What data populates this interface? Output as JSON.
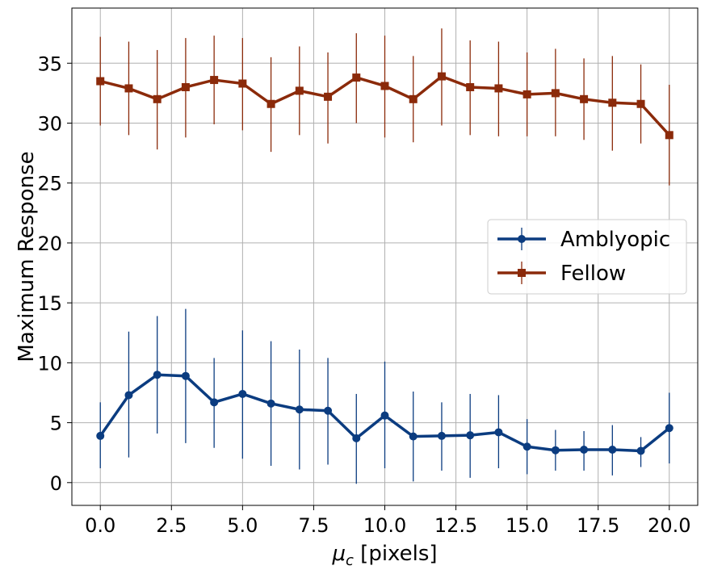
{
  "chart_data": {
    "type": "line",
    "xlabel_symbol": "μ",
    "xlabel_subscript": "c",
    "xlabel_unit": " [pixels]",
    "ylabel": "Maximum Response",
    "xlim": [
      -1.0,
      21.0
    ],
    "ylim": [
      -1.9,
      39.6
    ],
    "xticks": [
      0.0,
      2.5,
      5.0,
      7.5,
      10.0,
      12.5,
      15.0,
      17.5,
      20.0
    ],
    "xtick_labels": [
      "0.0",
      "2.5",
      "5.0",
      "7.5",
      "10.0",
      "12.5",
      "15.0",
      "17.5",
      "20.0"
    ],
    "yticks": [
      0,
      5,
      10,
      15,
      20,
      25,
      30,
      35
    ],
    "ytick_labels": [
      "0",
      "5",
      "10",
      "15",
      "20",
      "25",
      "30",
      "35"
    ],
    "grid": true,
    "legend_position": "center-right",
    "x": [
      0,
      1,
      2,
      3,
      4,
      5,
      6,
      7,
      8,
      9,
      10,
      11,
      12,
      13,
      14,
      15,
      16,
      17,
      18,
      19,
      20
    ],
    "series": [
      {
        "name": "Amblyopic",
        "color": "#0b3c80",
        "marker": "circle",
        "values": [
          3.9,
          7.3,
          9.0,
          8.9,
          6.7,
          7.4,
          6.6,
          6.1,
          6.0,
          3.7,
          5.6,
          3.85,
          3.9,
          3.95,
          4.2,
          3.0,
          2.7,
          2.75,
          2.75,
          2.65,
          4.55
        ],
        "err_low": [
          1.2,
          2.1,
          4.1,
          3.3,
          2.9,
          2.0,
          1.4,
          1.1,
          1.5,
          -0.1,
          1.2,
          0.1,
          1.0,
          0.4,
          1.2,
          0.7,
          1.0,
          1.0,
          0.6,
          1.3,
          1.6
        ],
        "err_high": [
          6.7,
          12.6,
          13.9,
          14.5,
          10.4,
          12.7,
          11.8,
          11.1,
          10.4,
          7.4,
          10.1,
          7.6,
          6.7,
          7.4,
          7.3,
          5.3,
          4.4,
          4.3,
          4.8,
          3.8,
          7.5
        ]
      },
      {
        "name": "Fellow",
        "color": "#8b2a0a",
        "marker": "square",
        "values": [
          33.5,
          32.9,
          32.0,
          33.0,
          33.6,
          33.3,
          31.6,
          32.7,
          32.2,
          33.8,
          33.1,
          32.0,
          33.9,
          33.0,
          32.9,
          32.4,
          32.5,
          32.0,
          31.7,
          31.6,
          29.0
        ],
        "err_low": [
          29.8,
          29.0,
          27.8,
          28.8,
          29.9,
          29.4,
          27.6,
          29.0,
          28.3,
          30.0,
          28.8,
          28.4,
          29.8,
          29.0,
          28.9,
          28.9,
          28.9,
          28.6,
          27.7,
          28.3,
          24.8
        ],
        "err_high": [
          37.2,
          36.8,
          36.1,
          37.1,
          37.3,
          37.1,
          35.5,
          36.4,
          35.9,
          37.5,
          37.3,
          35.6,
          37.9,
          36.9,
          36.8,
          35.9,
          36.2,
          35.4,
          35.6,
          34.9,
          33.2
        ]
      }
    ]
  }
}
